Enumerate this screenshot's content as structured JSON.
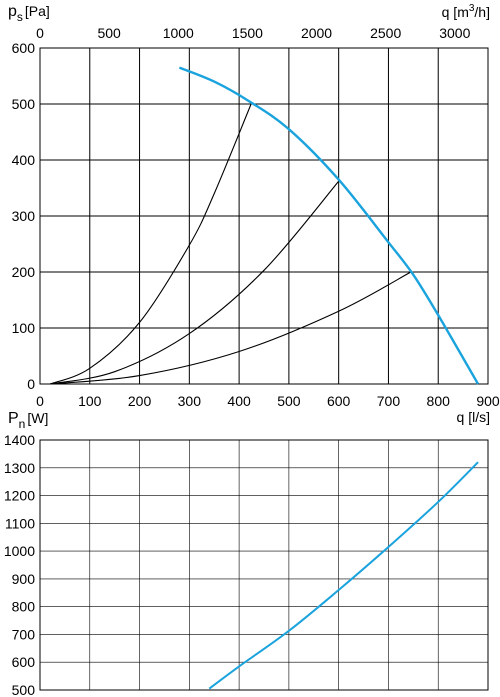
{
  "chart_data": [
    {
      "type": "line",
      "title": "",
      "ylabel": {
        "symbol": "p",
        "sub": "s",
        "unit": "[Pa]"
      },
      "xlabel": "q [l/s]",
      "x2label": {
        "prefix": "q [m",
        "sup": "3",
        "suffix": "/h]"
      },
      "xlim": [
        0,
        900
      ],
      "ylim": [
        0,
        600
      ],
      "x2lim": [
        0,
        3240
      ],
      "xticks": [
        0,
        100,
        200,
        300,
        400,
        500,
        600,
        700,
        800,
        900
      ],
      "yticks": [
        0,
        100,
        200,
        300,
        400,
        500,
        600
      ],
      "x2ticks": [
        0,
        500,
        1000,
        1500,
        2000,
        2500,
        3000
      ],
      "grid": true,
      "fan_curve": {
        "color": "#1aa3dd",
        "x": [
          280,
          350,
          420,
          500,
          600,
          700,
          750,
          800,
          880
        ],
        "y": [
          565,
          540,
          505,
          455,
          365,
          253,
          195,
          123,
          0
        ]
      },
      "system_curves": [
        {
          "color": "#000000",
          "x": [
            20,
            100,
            200,
            300,
            350,
            425
          ],
          "y": [
            0,
            28,
            110,
            248,
            340,
            502
          ]
        },
        {
          "color": "#000000",
          "x": [
            20,
            150,
            300,
            450,
            600
          ],
          "y": [
            0,
            22,
            90,
            203,
            362
          ]
        },
        {
          "color": "#000000",
          "x": [
            20,
            200,
            400,
            600,
            745
          ],
          "y": [
            0,
            15,
            58,
            130,
            200
          ]
        }
      ]
    },
    {
      "type": "line",
      "title": "",
      "ylabel": {
        "symbol": "P",
        "sub": "n",
        "unit": "[W]"
      },
      "xlim": [
        0,
        900
      ],
      "ylim": [
        500,
        1400
      ],
      "yticks": [
        500,
        600,
        700,
        800,
        900,
        1000,
        1100,
        1200,
        1300,
        1400
      ],
      "grid": true,
      "series": [
        {
          "color": "#1aa3dd",
          "x": [
            340,
            400,
            500,
            600,
            700,
            800,
            880
          ],
          "y": [
            505,
            585,
            713,
            860,
            1015,
            1177,
            1320
          ]
        }
      ]
    }
  ]
}
